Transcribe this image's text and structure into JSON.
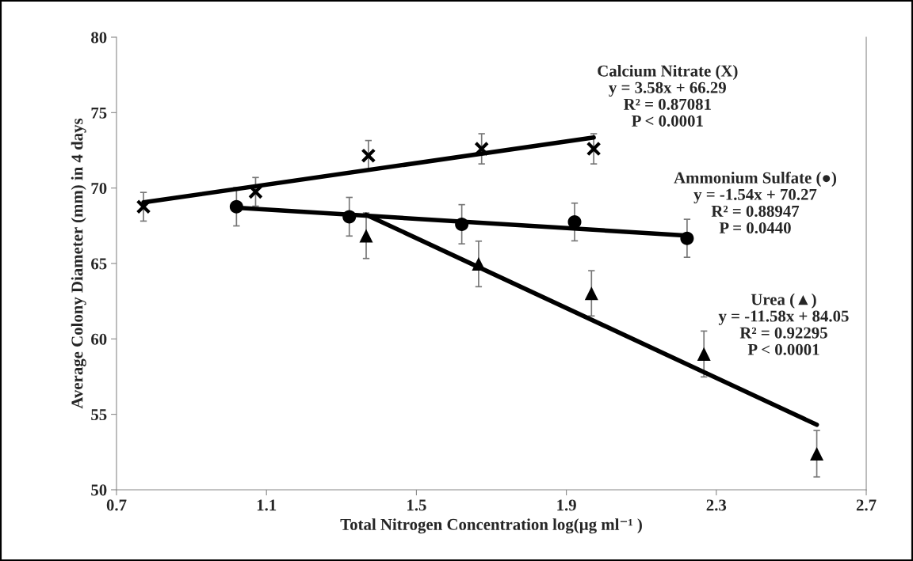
{
  "chart_data": {
    "type": "scatter",
    "xlabel": "Total Nitrogen Concentration log(µg ml⁻¹ )",
    "ylabel": "Average Colony Diameter (mm) in 4 days",
    "xlim": [
      0.7,
      2.7
    ],
    "xticks": [
      0.7,
      1.1,
      1.5,
      1.9,
      2.3,
      2.7
    ],
    "ylim": [
      50,
      80
    ],
    "yticks": [
      50,
      55,
      60,
      65,
      70,
      75,
      80
    ],
    "grid": false,
    "legend": false,
    "series": [
      {
        "marker": "cross",
        "color": "#000000",
        "x": [
          0.772,
          1.071,
          1.372,
          1.674,
          1.973
        ],
        "values": [
          68.76,
          69.75,
          72.15,
          72.6,
          72.6
        ],
        "errors": [
          0.95,
          0.95,
          1.0,
          1.0,
          1.0
        ]
      },
      {
        "marker": "circle",
        "color": "#000000",
        "x": [
          1.02,
          1.321,
          1.621,
          1.922,
          2.222
        ],
        "values": [
          68.76,
          68.1,
          67.6,
          67.75,
          66.67
        ],
        "errors": [
          1.27,
          1.28,
          1.3,
          1.25,
          1.26
        ]
      },
      {
        "marker": "triangle",
        "color": "#000000",
        "x": [
          1.366,
          1.666,
          1.967,
          2.267,
          2.568
        ],
        "values": [
          66.84,
          64.97,
          63.02,
          59.0,
          52.39
        ],
        "errors": [
          1.51,
          1.51,
          1.5,
          1.52,
          1.54
        ]
      },
      {
        "type": "line",
        "color": "#000000",
        "x": [
          0.772,
          1.973
        ],
        "values": [
          69.05,
          73.35
        ]
      },
      {
        "type": "line",
        "color": "#000000",
        "x": [
          1.02,
          2.222
        ],
        "values": [
          68.7,
          66.85
        ]
      },
      {
        "type": "line",
        "color": "#000000",
        "x": [
          1.366,
          2.568
        ],
        "values": [
          68.23,
          54.31
        ]
      }
    ],
    "annotations": [
      "Calcium Nitrate (X)\ny = 3.58x + 66.29\nR² = 0.87081\nP < 0.0001",
      "Ammonium Sulfate (●)\ny = -1.54x + 70.27\nR² = 0.88947\nP = 0.0440",
      "Urea (▲)\ny = -11.58x + 84.05\nR² = 0.92295\nP < 0.0001"
    ]
  }
}
